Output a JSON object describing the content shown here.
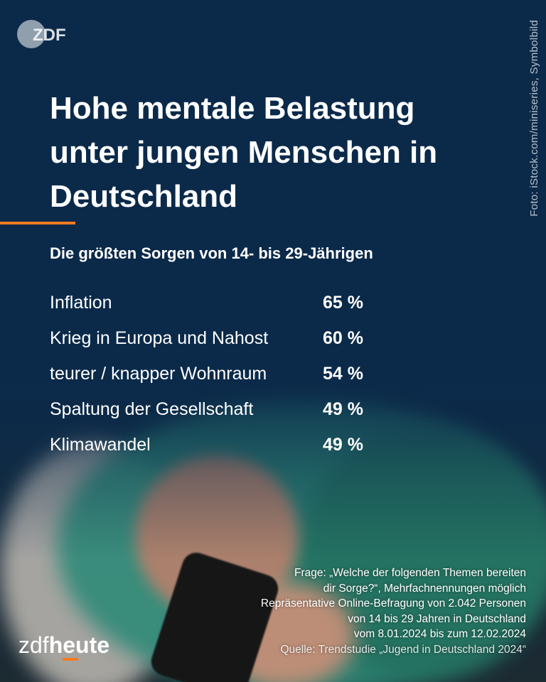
{
  "brand": {
    "top_logo": "ZDF",
    "bottom_logo_part1": "zdf",
    "bottom_logo_part2": "heute"
  },
  "photo_credit": "Foto: iStock.com/miniseries, Symbolbild",
  "chart_data": {
    "type": "table",
    "title": "Hohe mentale Belastung unter jungen Menschen in Deutschland",
    "subtitle": "Die größten Sorgen von 14- bis 29-Jährigen",
    "rows": [
      {
        "label": "Inflation",
        "value": 65,
        "display": "65 %"
      },
      {
        "label": "Krieg in Europa und Nahost",
        "value": 60,
        "display": "60 %"
      },
      {
        "label": "teurer / knapper Wohnraum",
        "value": 54,
        "display": "54 %"
      },
      {
        "label": "Spaltung der Gesellschaft",
        "value": 49,
        "display": "49 %"
      },
      {
        "label": "Klimawandel",
        "value": 49,
        "display": "49 %"
      }
    ],
    "unit": "%"
  },
  "footnote": {
    "line1": "Frage: „Welche der folgenden Themen bereiten",
    "line2": "dir Sorge?“, Mehrfachnennungen möglich",
    "line3": "Repräsentative Online-Befragung von 2.042 Personen",
    "line4": "von 14 bis 29 Jahren in Deutschland",
    "line5": "vom 8.01.2024 bis zum 12.02.2024",
    "source": "Quelle: Trendstudie „Jugend in Deutschland 2024“"
  },
  "colors": {
    "background": "#0b2a4a",
    "accent": "#f57b20",
    "text": "#ffffff"
  }
}
